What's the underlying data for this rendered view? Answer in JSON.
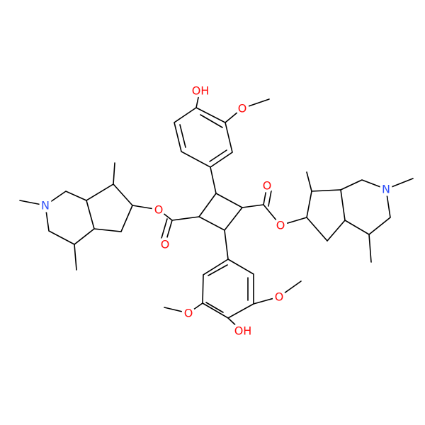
{
  "labels": [
    "OH",
    "O",
    "O",
    "O",
    "N",
    "O",
    "O",
    "N",
    "O",
    "O",
    "OH"
  ]
}
